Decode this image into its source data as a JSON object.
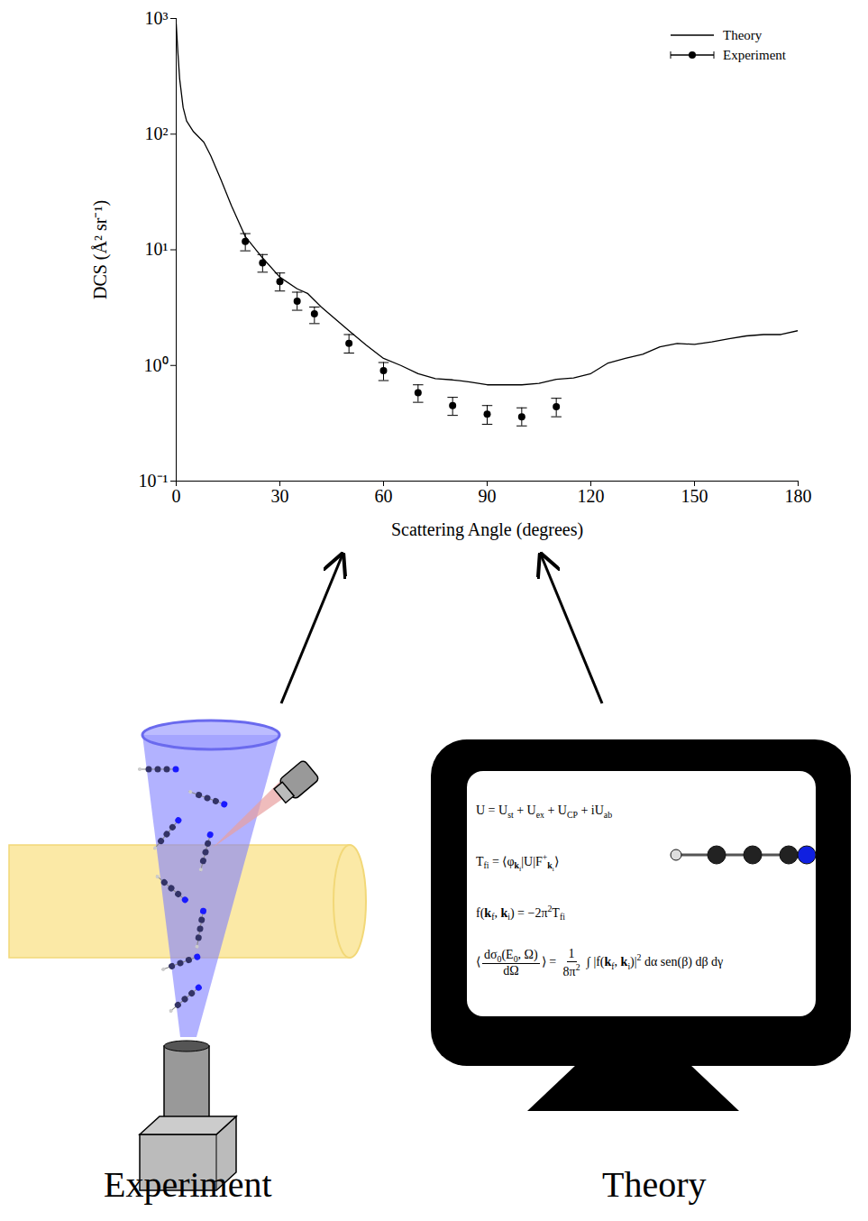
{
  "chart_data": {
    "type": "line",
    "x_label": "Scattering Angle (degrees)",
    "y_label": "DCS (Å² sr⁻¹)",
    "log": "y",
    "legend": "top-right",
    "xlim": [
      0,
      180
    ],
    "xticks": [
      0,
      30,
      60,
      90,
      120,
      150,
      180
    ],
    "ylim": [
      0.1,
      1000
    ],
    "yticks": [
      {
        "value": 0.1,
        "label": "10⁻¹"
      },
      {
        "value": 1,
        "label": "10⁰"
      },
      {
        "value": 10,
        "label": "10¹"
      },
      {
        "value": 100,
        "label": "10²"
      },
      {
        "value": 1000,
        "label": "10³"
      }
    ],
    "series": [
      {
        "name": "Theory",
        "type": "line",
        "color": "#000000",
        "line_style": "solid",
        "x": [
          0,
          0.5,
          1,
          2,
          3,
          5,
          8,
          10,
          13,
          16,
          20,
          25,
          30,
          35,
          38,
          42,
          50,
          55,
          60,
          65,
          70,
          75,
          80,
          85,
          90,
          95,
          100,
          105,
          110,
          115,
          120,
          125,
          130,
          135,
          140,
          145,
          150,
          155,
          160,
          165,
          170,
          175,
          180
        ],
        "values": [
          900,
          500,
          300,
          170,
          130,
          105,
          85,
          65,
          40,
          24,
          13,
          8.5,
          5.8,
          4.6,
          4.2,
          3.2,
          2.0,
          1.5,
          1.15,
          1.0,
          0.85,
          0.77,
          0.75,
          0.72,
          0.68,
          0.68,
          0.68,
          0.7,
          0.76,
          0.78,
          0.85,
          1.05,
          1.15,
          1.25,
          1.45,
          1.55,
          1.52,
          1.6,
          1.7,
          1.8,
          1.85,
          1.85,
          2.0
        ]
      },
      {
        "name": "Experiment",
        "type": "scatter",
        "color": "#000000",
        "marker": "circle",
        "x": [
          20,
          25,
          30,
          35,
          40,
          50,
          60,
          70,
          80,
          90,
          100,
          110
        ],
        "values": [
          11.8,
          7.7,
          5.3,
          3.6,
          2.8,
          1.55,
          0.9,
          0.58,
          0.45,
          0.38,
          0.36,
          0.44
        ],
        "error_lower": [
          9.8,
          6.4,
          4.4,
          3.0,
          2.3,
          1.28,
          0.74,
          0.48,
          0.37,
          0.31,
          0.3,
          0.36
        ],
        "error_upper": [
          13.8,
          9.1,
          6.3,
          4.3,
          3.2,
          1.85,
          1.06,
          0.68,
          0.53,
          0.45,
          0.43,
          0.52
        ]
      }
    ]
  },
  "diagram": {
    "panels": [
      {
        "label": "Experiment"
      },
      {
        "label": "Theory",
        "equations": [
          [
            "U = U",
            {
              "sub": "st"
            },
            " + U",
            {
              "sub": "ex"
            },
            " + U",
            {
              "sub": "CP"
            },
            " + iU",
            {
              "sub": "ab"
            }
          ],
          [
            "T",
            {
              "sub": "fi"
            },
            " = ⟨φ",
            {
              "sub": [
                {
                  "b": "k"
                },
                {
                  "sub": "f"
                }
              ]
            },
            "|U|F",
            {
              "sup": "+"
            },
            {
              "sub": [
                {
                  "b": "k"
                },
                {
                  "sub": "i"
                }
              ]
            },
            "⟩"
          ],
          [
            "f(",
            {
              "b": "k"
            },
            {
              "sub": "f"
            },
            ", ",
            {
              "b": "k"
            },
            {
              "sub": "i"
            },
            ") = −2π",
            {
              "sup": "2"
            },
            "T",
            {
              "sub": "fi"
            }
          ],
          [
            "⟨",
            {
              "frac": [
                [
                  "dσ",
                  {
                    "sub": "0"
                  },
                  "(E",
                  {
                    "sub": "0"
                  },
                  ", Ω)"
                ],
                [
                  "dΩ"
                ]
              ]
            },
            "⟩ = ",
            {
              "frac": [
                [
                  "1"
                ],
                [
                  "8π",
                  {
                    "sup": "2"
                  }
                ]
              ]
            },
            " ∫ |f(",
            {
              "b": "k"
            },
            {
              "sub": "f"
            },
            ", ",
            {
              "b": "k"
            },
            {
              "sub": "i"
            },
            ")|",
            {
              "sup": "2"
            },
            " dα sen(β) dβ dγ"
          ]
        ]
      }
    ]
  }
}
